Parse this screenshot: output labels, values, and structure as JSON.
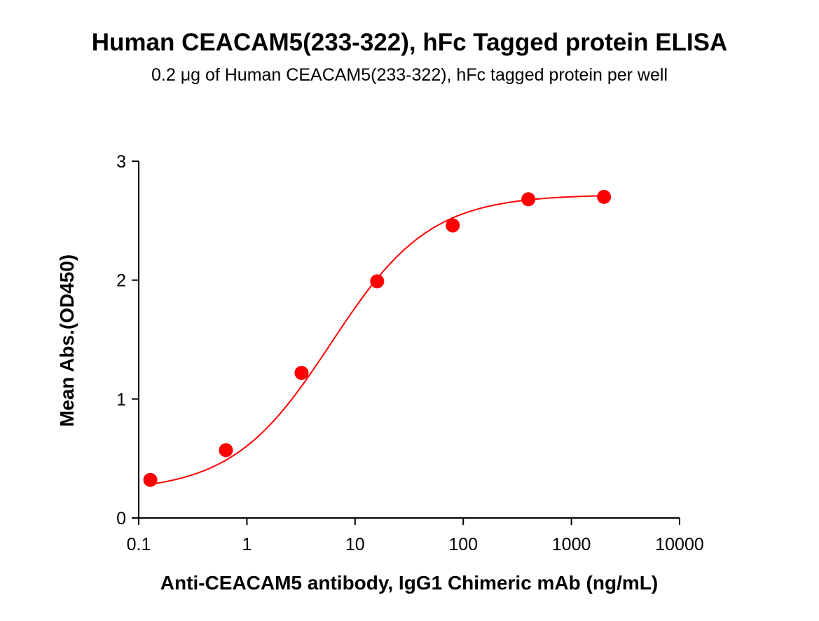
{
  "chart_data": {
    "type": "scatter",
    "title": "Human CEACAM5(233-322), hFc Tagged protein ELISA",
    "subtitle": "0.2 μg of Human CEACAM5(233-322), hFc tagged protein per well",
    "xlabel": "Anti-CEACAM5 antibody, IgG1 Chimeric mAb (ng/mL)",
    "ylabel": "Mean Abs.(OD450)",
    "x_scale": "log",
    "xlim": [
      0.1,
      10000
    ],
    "ylim": [
      0,
      3
    ],
    "x_ticks": [
      0.1,
      1,
      10,
      100,
      1000,
      10000
    ],
    "x_tick_labels": [
      "0.1",
      "1",
      "10",
      "100",
      "1000",
      "10000"
    ],
    "y_ticks": [
      0,
      1,
      2,
      3
    ],
    "y_tick_labels": [
      "0",
      "1",
      "2",
      "3"
    ],
    "grid": false,
    "color": "#ff0000",
    "series": [
      {
        "x": [
          0.128,
          0.64,
          3.2,
          16,
          80,
          400,
          2000
        ],
        "y": [
          0.32,
          0.57,
          1.22,
          1.99,
          2.46,
          2.68,
          2.7
        ],
        "fit": {
          "model": "4PL",
          "bottom": 0.22,
          "top": 2.72,
          "ec50": 6.0,
          "hill": 0.95
        }
      }
    ]
  }
}
